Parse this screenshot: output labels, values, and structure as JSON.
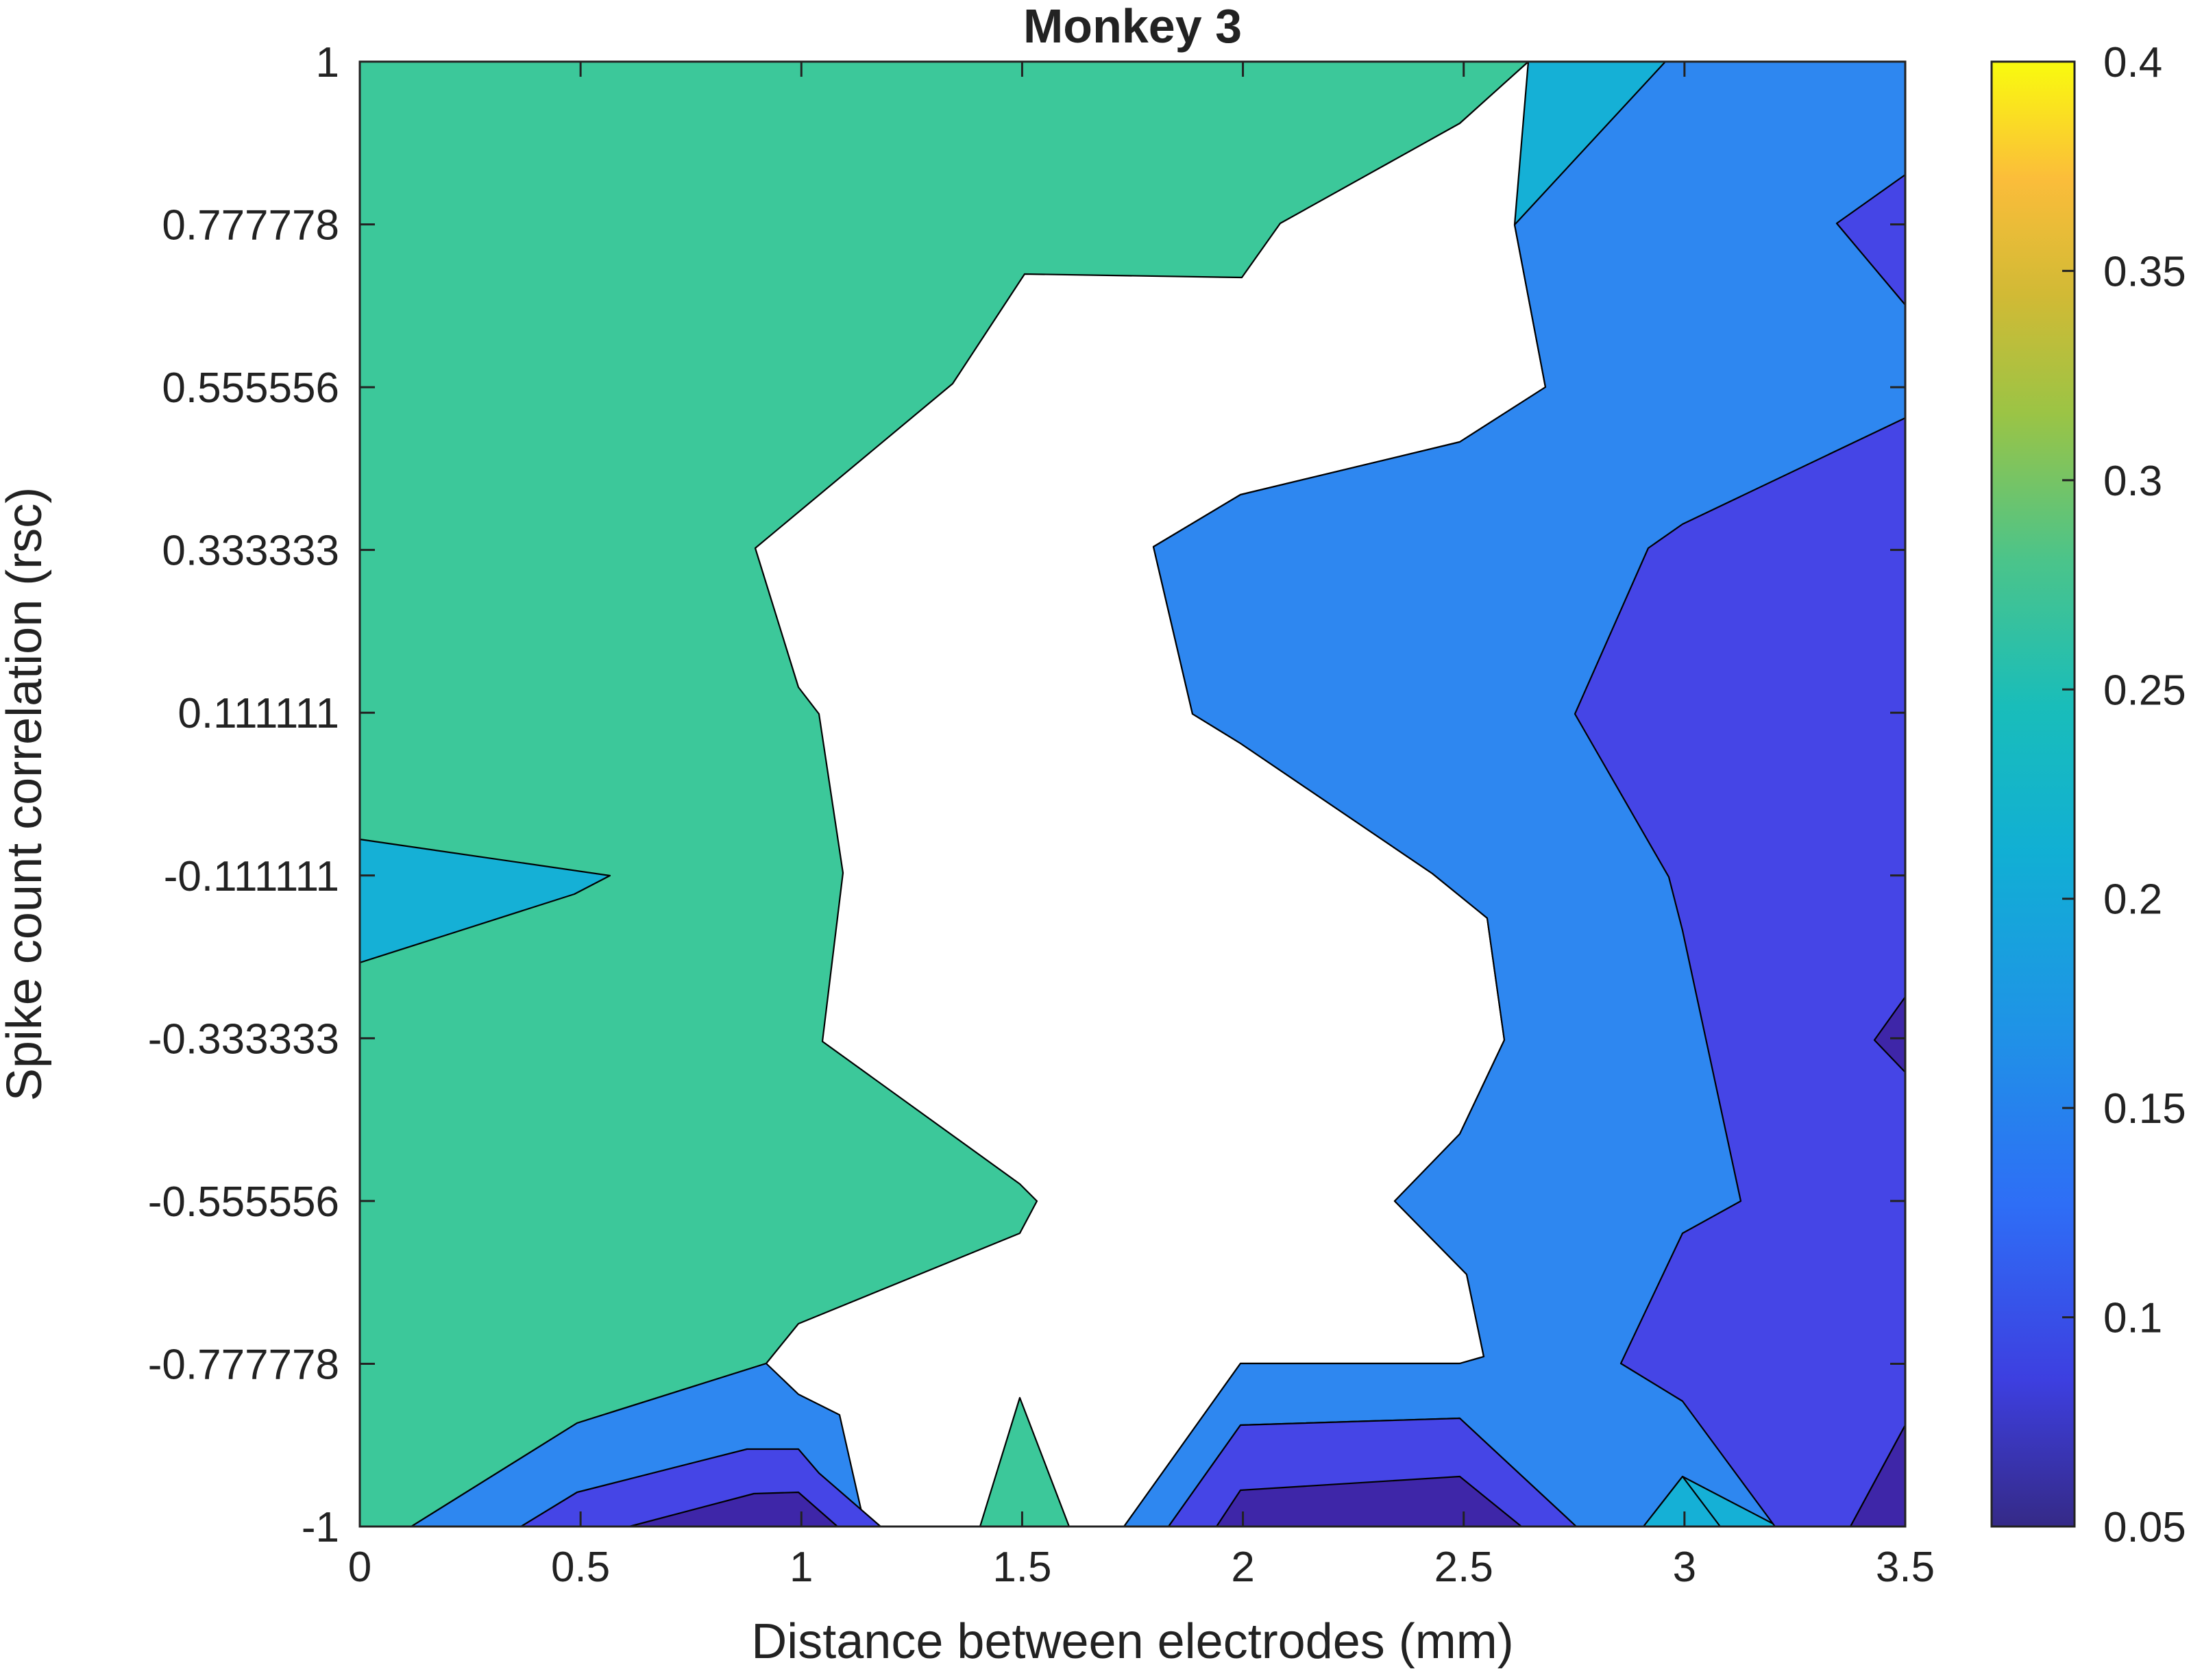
{
  "chart_data": {
    "type": "contour",
    "title": "Monkey 3",
    "xlabel": "Distance between electrodes (mm)",
    "ylabel": "Spike count correlation (rsc)",
    "x": [
      0,
      0.5,
      1,
      1.5,
      2,
      2.5,
      3,
      3.5
    ],
    "y": [
      -1,
      -0.777778,
      -0.555556,
      -0.333333,
      -0.111111,
      0.111111,
      0.333333,
      0.555556,
      0.777778,
      1
    ],
    "xlim": [
      0,
      3.5
    ],
    "ylim": [
      -1,
      1
    ],
    "x_tick_labels": [
      "0",
      "0.5",
      "1",
      "1.5",
      "2",
      "2.5",
      "3",
      "3.5"
    ],
    "y_tick_labels": [
      "-1",
      "-0.777778",
      "-0.555556",
      "-0.333333",
      "-0.111111",
      "0.111111",
      "0.333333",
      "0.555556",
      "0.777778",
      "1"
    ],
    "levels": [
      0.05,
      0.1,
      0.15,
      0.2,
      0.25,
      0.3,
      0.35,
      0.4
    ],
    "colorbar": {
      "range": [
        0.05,
        0.4
      ],
      "tick_labels": [
        "0.05",
        "0.1",
        "0.15",
        "0.2",
        "0.25",
        "0.3",
        "0.35",
        "0.4"
      ],
      "colormap": "parula"
    },
    "grid": false
  },
  "colors": {
    "band_0": "#3e26a8",
    "band_1": "#4545e6",
    "band_2": "#2e87f0",
    "band_3": "#15b0d6",
    "band_4": "#3cc89a",
    "band_5": "#b0c535",
    "band_6": "#fdbc3c",
    "band_7": "#f9fb0e"
  }
}
